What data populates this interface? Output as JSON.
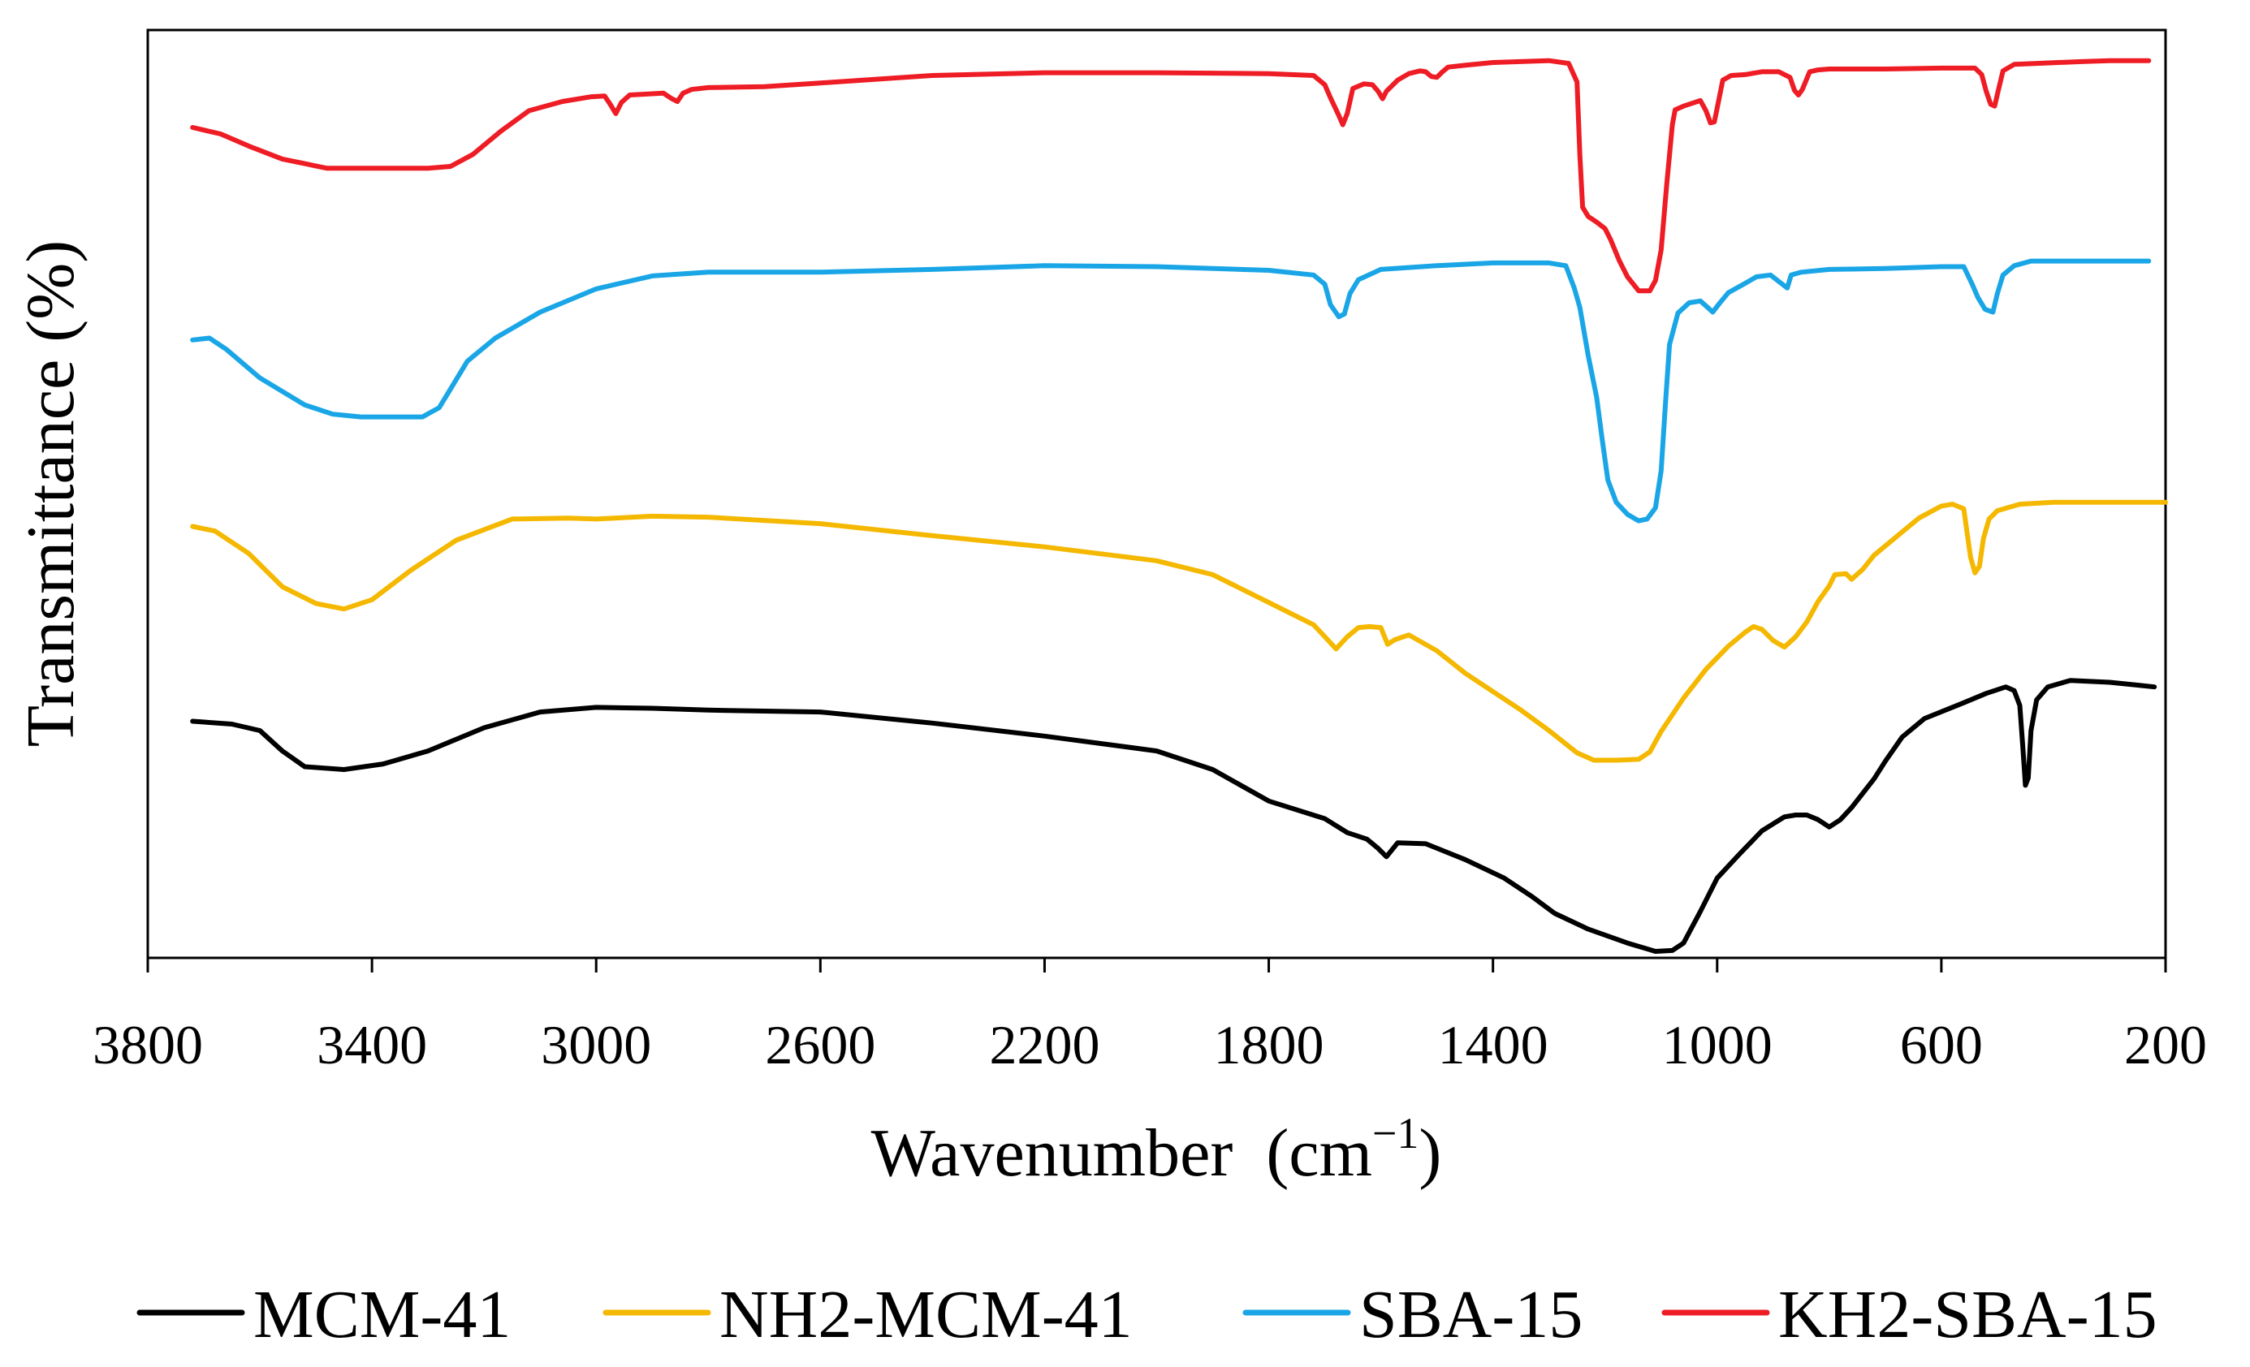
{
  "chart_data": {
    "type": "line",
    "title": "",
    "xlabel": "Wavenumber",
    "xlabel_unit": "(cm",
    "xlabel_sup": "−1",
    "xlabel_close": ")",
    "ylabel": "Transmittance  (%)",
    "xlim": [
      3800,
      200
    ],
    "x_reversed": true,
    "ylim": [
      0,
      100
    ],
    "y_ticks_shown": false,
    "grid": false,
    "legend_position": "bottom",
    "x_ticks": [
      "3800",
      "3400",
      "3000",
      "2600",
      "2200",
      "1800",
      "1400",
      "1000",
      "600",
      "200"
    ],
    "series": [
      {
        "name": "MCM-41",
        "color": "#000000",
        "points": [
          [
            3720,
            25.5
          ],
          [
            3650,
            25.2
          ],
          [
            3600,
            24.5
          ],
          [
            3560,
            22.3
          ],
          [
            3520,
            20.6
          ],
          [
            3450,
            20.3
          ],
          [
            3380,
            20.9
          ],
          [
            3300,
            22.3
          ],
          [
            3200,
            24.8
          ],
          [
            3100,
            26.5
          ],
          [
            3000,
            27.0
          ],
          [
            2900,
            26.9
          ],
          [
            2800,
            26.7
          ],
          [
            2600,
            26.5
          ],
          [
            2400,
            25.3
          ],
          [
            2200,
            23.9
          ],
          [
            2000,
            22.3
          ],
          [
            1900,
            20.3
          ],
          [
            1800,
            16.9
          ],
          [
            1700,
            15.0
          ],
          [
            1660,
            13.5
          ],
          [
            1625,
            12.8
          ],
          [
            1605,
            11.8
          ],
          [
            1590,
            10.9
          ],
          [
            1570,
            12.4
          ],
          [
            1520,
            12.3
          ],
          [
            1450,
            10.6
          ],
          [
            1380,
            8.6
          ],
          [
            1330,
            6.6
          ],
          [
            1290,
            4.8
          ],
          [
            1230,
            3.1
          ],
          [
            1160,
            1.6
          ],
          [
            1110,
            0.7
          ],
          [
            1080,
            0.8
          ],
          [
            1060,
            1.6
          ],
          [
            1030,
            5.0
          ],
          [
            1000,
            8.6
          ],
          [
            960,
            11.2
          ],
          [
            920,
            13.7
          ],
          [
            880,
            15.2
          ],
          [
            860,
            15.4
          ],
          [
            840,
            15.4
          ],
          [
            820,
            14.9
          ],
          [
            800,
            14.1
          ],
          [
            780,
            14.9
          ],
          [
            760,
            16.2
          ],
          [
            720,
            19.3
          ],
          [
            700,
            21.2
          ],
          [
            670,
            23.8
          ],
          [
            630,
            25.8
          ],
          [
            560,
            27.5
          ],
          [
            520,
            28.5
          ],
          [
            485,
            29.2
          ],
          [
            470,
            28.8
          ],
          [
            460,
            27.2
          ],
          [
            455,
            23.0
          ],
          [
            450,
            18.6
          ],
          [
            445,
            19.4
          ],
          [
            440,
            24.5
          ],
          [
            430,
            27.8
          ],
          [
            410,
            29.2
          ],
          [
            370,
            29.9
          ],
          [
            300,
            29.7
          ],
          [
            250,
            29.4
          ],
          [
            220,
            29.2
          ]
        ]
      },
      {
        "name": "NH2-MCM-41",
        "color": "#f5b800",
        "points": [
          [
            3720,
            46.5
          ],
          [
            3680,
            46.0
          ],
          [
            3620,
            43.6
          ],
          [
            3560,
            40.0
          ],
          [
            3500,
            38.2
          ],
          [
            3450,
            37.6
          ],
          [
            3400,
            38.6
          ],
          [
            3330,
            41.8
          ],
          [
            3250,
            45.0
          ],
          [
            3150,
            47.3
          ],
          [
            3050,
            47.4
          ],
          [
            3000,
            47.3
          ],
          [
            2900,
            47.6
          ],
          [
            2800,
            47.5
          ],
          [
            2600,
            46.8
          ],
          [
            2400,
            45.5
          ],
          [
            2200,
            44.3
          ],
          [
            2000,
            42.8
          ],
          [
            1900,
            41.3
          ],
          [
            1800,
            38.3
          ],
          [
            1720,
            35.9
          ],
          [
            1695,
            34.3
          ],
          [
            1680,
            33.3
          ],
          [
            1660,
            34.6
          ],
          [
            1640,
            35.6
          ],
          [
            1620,
            35.7
          ],
          [
            1600,
            35.6
          ],
          [
            1588,
            33.8
          ],
          [
            1575,
            34.3
          ],
          [
            1550,
            34.8
          ],
          [
            1500,
            33.1
          ],
          [
            1450,
            30.7
          ],
          [
            1400,
            28.7
          ],
          [
            1350,
            26.7
          ],
          [
            1300,
            24.5
          ],
          [
            1250,
            22.1
          ],
          [
            1220,
            21.3
          ],
          [
            1180,
            21.3
          ],
          [
            1140,
            21.4
          ],
          [
            1120,
            22.2
          ],
          [
            1100,
            24.4
          ],
          [
            1060,
            28.0
          ],
          [
            1020,
            31.1
          ],
          [
            980,
            33.6
          ],
          [
            950,
            35.1
          ],
          [
            935,
            35.7
          ],
          [
            920,
            35.4
          ],
          [
            900,
            34.2
          ],
          [
            880,
            33.5
          ],
          [
            860,
            34.6
          ],
          [
            840,
            36.2
          ],
          [
            820,
            38.4
          ],
          [
            800,
            40.1
          ],
          [
            790,
            41.3
          ],
          [
            770,
            41.4
          ],
          [
            760,
            40.8
          ],
          [
            740,
            41.9
          ],
          [
            720,
            43.4
          ],
          [
            680,
            45.4
          ],
          [
            640,
            47.4
          ],
          [
            600,
            48.7
          ],
          [
            580,
            48.9
          ],
          [
            560,
            48.4
          ],
          [
            555,
            46.2
          ],
          [
            548,
            43.2
          ],
          [
            540,
            41.5
          ],
          [
            532,
            42.2
          ],
          [
            525,
            45.2
          ],
          [
            515,
            47.3
          ],
          [
            500,
            48.2
          ],
          [
            460,
            48.9
          ],
          [
            400,
            49.1
          ],
          [
            300,
            49.1
          ],
          [
            200,
            49.1
          ]
        ]
      },
      {
        "name": "SBA-15",
        "color": "#1aa6e6",
        "points": [
          [
            3720,
            66.6
          ],
          [
            3690,
            66.8
          ],
          [
            3660,
            65.6
          ],
          [
            3600,
            62.5
          ],
          [
            3520,
            59.6
          ],
          [
            3470,
            58.6
          ],
          [
            3420,
            58.3
          ],
          [
            3360,
            58.3
          ],
          [
            3310,
            58.3
          ],
          [
            3280,
            59.3
          ],
          [
            3260,
            61.3
          ],
          [
            3230,
            64.3
          ],
          [
            3180,
            66.8
          ],
          [
            3100,
            69.6
          ],
          [
            3000,
            72.1
          ],
          [
            2900,
            73.5
          ],
          [
            2800,
            73.9
          ],
          [
            2600,
            73.9
          ],
          [
            2400,
            74.2
          ],
          [
            2200,
            74.6
          ],
          [
            2000,
            74.5
          ],
          [
            1800,
            74.1
          ],
          [
            1720,
            73.6
          ],
          [
            1700,
            72.6
          ],
          [
            1690,
            70.4
          ],
          [
            1675,
            69.1
          ],
          [
            1665,
            69.4
          ],
          [
            1655,
            71.6
          ],
          [
            1640,
            73.1
          ],
          [
            1600,
            74.2
          ],
          [
            1500,
            74.6
          ],
          [
            1400,
            74.9
          ],
          [
            1300,
            74.9
          ],
          [
            1270,
            74.6
          ],
          [
            1255,
            72.2
          ],
          [
            1245,
            70.1
          ],
          [
            1230,
            64.9
          ],
          [
            1215,
            60.4
          ],
          [
            1205,
            55.8
          ],
          [
            1195,
            51.5
          ],
          [
            1180,
            49.1
          ],
          [
            1160,
            47.8
          ],
          [
            1140,
            47.1
          ],
          [
            1125,
            47.3
          ],
          [
            1110,
            48.5
          ],
          [
            1100,
            52.5
          ],
          [
            1092,
            60.0
          ],
          [
            1085,
            66.1
          ],
          [
            1070,
            69.5
          ],
          [
            1050,
            70.6
          ],
          [
            1030,
            70.8
          ],
          [
            1015,
            70.0
          ],
          [
            1008,
            69.6
          ],
          [
            995,
            70.6
          ],
          [
            980,
            71.7
          ],
          [
            950,
            72.7
          ],
          [
            930,
            73.4
          ],
          [
            905,
            73.6
          ],
          [
            890,
            72.9
          ],
          [
            875,
            72.2
          ],
          [
            868,
            73.6
          ],
          [
            850,
            73.9
          ],
          [
            800,
            74.2
          ],
          [
            700,
            74.3
          ],
          [
            600,
            74.5
          ],
          [
            560,
            74.5
          ],
          [
            545,
            72.6
          ],
          [
            535,
            71.2
          ],
          [
            522,
            69.9
          ],
          [
            508,
            69.6
          ],
          [
            500,
            71.6
          ],
          [
            490,
            73.6
          ],
          [
            470,
            74.6
          ],
          [
            440,
            75.1
          ],
          [
            300,
            75.1
          ],
          [
            230,
            75.1
          ]
        ]
      },
      {
        "name": "KH2-SBA-15",
        "color": "#ee1c24",
        "points": [
          [
            3720,
            89.5
          ],
          [
            3670,
            88.8
          ],
          [
            3620,
            87.5
          ],
          [
            3560,
            86.1
          ],
          [
            3480,
            85.1
          ],
          [
            3400,
            85.1
          ],
          [
            3300,
            85.1
          ],
          [
            3260,
            85.3
          ],
          [
            3220,
            86.6
          ],
          [
            3170,
            89.1
          ],
          [
            3120,
            91.3
          ],
          [
            3060,
            92.3
          ],
          [
            3010,
            92.8
          ],
          [
            2985,
            92.9
          ],
          [
            2975,
            92.0
          ],
          [
            2965,
            91.0
          ],
          [
            2955,
            92.2
          ],
          [
            2940,
            93.0
          ],
          [
            2880,
            93.2
          ],
          [
            2865,
            92.6
          ],
          [
            2855,
            92.3
          ],
          [
            2845,
            93.2
          ],
          [
            2830,
            93.6
          ],
          [
            2800,
            93.8
          ],
          [
            2700,
            93.9
          ],
          [
            2600,
            94.3
          ],
          [
            2400,
            95.1
          ],
          [
            2200,
            95.4
          ],
          [
            2000,
            95.4
          ],
          [
            1800,
            95.3
          ],
          [
            1720,
            95.1
          ],
          [
            1700,
            94.1
          ],
          [
            1690,
            92.7
          ],
          [
            1675,
            90.8
          ],
          [
            1668,
            89.8
          ],
          [
            1660,
            91.0
          ],
          [
            1650,
            93.7
          ],
          [
            1630,
            94.2
          ],
          [
            1615,
            94.1
          ],
          [
            1605,
            93.4
          ],
          [
            1597,
            92.6
          ],
          [
            1590,
            93.4
          ],
          [
            1570,
            94.6
          ],
          [
            1550,
            95.3
          ],
          [
            1530,
            95.6
          ],
          [
            1520,
            95.5
          ],
          [
            1510,
            95.0
          ],
          [
            1500,
            94.9
          ],
          [
            1490,
            95.5
          ],
          [
            1480,
            96.0
          ],
          [
            1450,
            96.2
          ],
          [
            1400,
            96.5
          ],
          [
            1300,
            96.7
          ],
          [
            1265,
            96.4
          ],
          [
            1250,
            94.4
          ],
          [
            1245,
            86.5
          ],
          [
            1240,
            80.9
          ],
          [
            1230,
            79.9
          ],
          [
            1215,
            79.3
          ],
          [
            1200,
            78.6
          ],
          [
            1190,
            77.4
          ],
          [
            1175,
            75.2
          ],
          [
            1160,
            73.4
          ],
          [
            1140,
            71.9
          ],
          [
            1120,
            71.9
          ],
          [
            1110,
            73.0
          ],
          [
            1100,
            76.3
          ],
          [
            1090,
            83.4
          ],
          [
            1080,
            89.8
          ],
          [
            1075,
            91.4
          ],
          [
            1060,
            91.8
          ],
          [
            1045,
            92.1
          ],
          [
            1030,
            92.4
          ],
          [
            1020,
            91.3
          ],
          [
            1012,
            90.0
          ],
          [
            1005,
            90.1
          ],
          [
            998,
            92.2
          ],
          [
            990,
            94.6
          ],
          [
            975,
            95.1
          ],
          [
            950,
            95.2
          ],
          [
            920,
            95.5
          ],
          [
            890,
            95.5
          ],
          [
            870,
            94.9
          ],
          [
            862,
            93.5
          ],
          [
            855,
            93.0
          ],
          [
            848,
            93.6
          ],
          [
            835,
            95.5
          ],
          [
            820,
            95.7
          ],
          [
            800,
            95.8
          ],
          [
            700,
            95.8
          ],
          [
            600,
            95.9
          ],
          [
            540,
            95.9
          ],
          [
            528,
            95.2
          ],
          [
            520,
            93.4
          ],
          [
            512,
            92.0
          ],
          [
            505,
            91.8
          ],
          [
            498,
            93.6
          ],
          [
            490,
            95.6
          ],
          [
            470,
            96.3
          ],
          [
            430,
            96.4
          ],
          [
            350,
            96.6
          ],
          [
            300,
            96.7
          ],
          [
            230,
            96.7
          ]
        ]
      }
    ]
  }
}
